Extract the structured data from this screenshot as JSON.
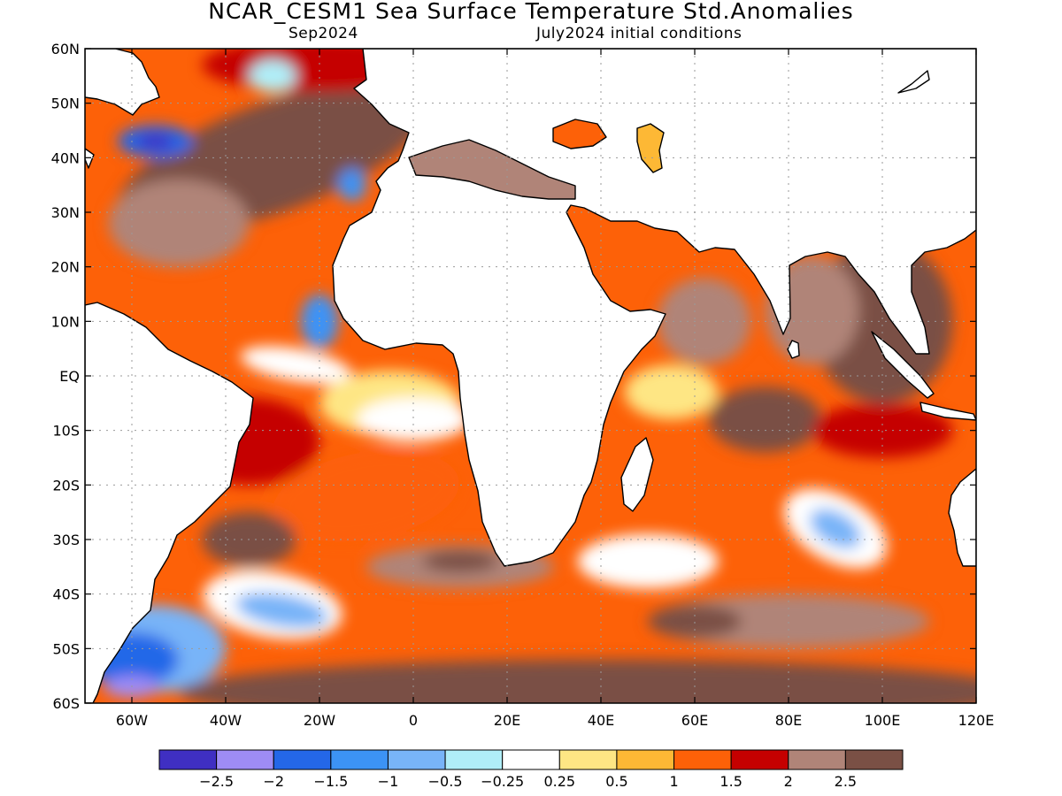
{
  "title": "NCAR_CESM1 Sea Surface Temperature Std.Anomalies",
  "subtitle_left": "Sep2024",
  "subtitle_right": "July2024 initial conditions",
  "map": {
    "lon_range": [
      -70,
      120
    ],
    "lat_range": [
      -60,
      60
    ],
    "lat_ticks": [
      {
        "value": 60,
        "label": "60N"
      },
      {
        "value": 50,
        "label": "50N"
      },
      {
        "value": 40,
        "label": "40N"
      },
      {
        "value": 30,
        "label": "30N"
      },
      {
        "value": 20,
        "label": "20N"
      },
      {
        "value": 10,
        "label": "10N"
      },
      {
        "value": 0,
        "label": "EQ"
      },
      {
        "value": -10,
        "label": "10S"
      },
      {
        "value": -20,
        "label": "20S"
      },
      {
        "value": -30,
        "label": "30S"
      },
      {
        "value": -40,
        "label": "40S"
      },
      {
        "value": -50,
        "label": "50S"
      },
      {
        "value": -60,
        "label": "60S"
      }
    ],
    "lon_ticks": [
      {
        "value": -60,
        "label": "60W"
      },
      {
        "value": -40,
        "label": "40W"
      },
      {
        "value": -20,
        "label": "20W"
      },
      {
        "value": 0,
        "label": "0"
      },
      {
        "value": 20,
        "label": "20E"
      },
      {
        "value": 40,
        "label": "40E"
      },
      {
        "value": 60,
        "label": "60E"
      },
      {
        "value": 80,
        "label": "80E"
      },
      {
        "value": 100,
        "label": "100E"
      },
      {
        "value": 120,
        "label": "120E"
      }
    ],
    "grid": true,
    "land_color": "#ffffff",
    "coastline_color": "#000000"
  },
  "colorbar": {
    "colors": [
      "#3f2fc2",
      "#9e8cf5",
      "#2467e8",
      "#3c93f5",
      "#78b4f8",
      "#b0eef8",
      "#ffffff",
      "#fee684",
      "#fdb835",
      "#fd6108",
      "#c50000",
      "#b08478",
      "#7a5045"
    ],
    "labels": [
      "−2.5",
      "−2",
      "−1.5",
      "−1",
      "−0.5",
      "−0.25",
      "0.25",
      "0.5",
      "1",
      "1.5",
      "2",
      "2.5"
    ]
  },
  "anomaly_blobs": [
    {
      "lon": -30,
      "lat": 40,
      "rx": 35,
      "ry": 10,
      "rot": -20,
      "level": 12
    },
    {
      "lon": -50,
      "lat": 28,
      "rx": 15,
      "ry": 8,
      "rot": 0,
      "level": 11
    },
    {
      "lon": -55,
      "lat": 43,
      "rx": 8,
      "ry": 3,
      "rot": 0,
      "level": 2
    },
    {
      "lon": -55,
      "lat": 43,
      "rx": 4,
      "ry": 1.5,
      "rot": 0,
      "level": 0
    },
    {
      "lon": -20,
      "lat": 10,
      "rx": 4,
      "ry": 5,
      "rot": 0,
      "level": 3
    },
    {
      "lon": -13,
      "lat": 35,
      "rx": 3,
      "ry": 3,
      "rot": 0,
      "level": 3
    },
    {
      "lon": -25,
      "lat": 2,
      "rx": 12,
      "ry": 3,
      "rot": 10,
      "level": 6
    },
    {
      "lon": -5,
      "lat": -5,
      "rx": 15,
      "ry": 6,
      "rot": 0,
      "level": 7
    },
    {
      "lon": 0,
      "lat": -8,
      "rx": 12,
      "ry": 4,
      "rot": 0,
      "level": 6
    },
    {
      "lon": -35,
      "lat": -12,
      "rx": 15,
      "ry": 8,
      "rot": 0,
      "level": 10
    },
    {
      "lon": -10,
      "lat": -22,
      "rx": 20,
      "ry": 8,
      "rot": -10,
      "level": 9
    },
    {
      "lon": -35,
      "lat": -30,
      "rx": 10,
      "ry": 5,
      "rot": 0,
      "level": 12
    },
    {
      "lon": -30,
      "lat": -42,
      "rx": 15,
      "ry": 6,
      "rot": 10,
      "level": 6
    },
    {
      "lon": -28,
      "lat": -43,
      "rx": 10,
      "ry": 3,
      "rot": 10,
      "level": 4
    },
    {
      "lon": -55,
      "lat": -50,
      "rx": 15,
      "ry": 8,
      "rot": 0,
      "level": 4
    },
    {
      "lon": -60,
      "lat": -52,
      "rx": 10,
      "ry": 5,
      "rot": 0,
      "level": 2
    },
    {
      "lon": -60,
      "lat": -57,
      "rx": 6,
      "ry": 2,
      "rot": 0,
      "level": 1
    },
    {
      "lon": 40,
      "lat": -58,
      "rx": 90,
      "ry": 6,
      "rot": 0,
      "level": 12
    },
    {
      "lon": 10,
      "lat": -35,
      "rx": 20,
      "ry": 4,
      "rot": 0,
      "level": 11
    },
    {
      "lon": 10,
      "lat": -34,
      "rx": 8,
      "ry": 2,
      "rot": 0,
      "level": 12
    },
    {
      "lon": 50,
      "lat": -34,
      "rx": 15,
      "ry": 5,
      "rot": 0,
      "level": 6
    },
    {
      "lon": 90,
      "lat": -28,
      "rx": 12,
      "ry": 6,
      "rot": 30,
      "level": 6
    },
    {
      "lon": 90,
      "lat": -28,
      "rx": 6,
      "ry": 3,
      "rot": 30,
      "level": 4
    },
    {
      "lon": 100,
      "lat": 10,
      "rx": 15,
      "ry": 15,
      "rot": 0,
      "level": 12
    },
    {
      "lon": 85,
      "lat": 12,
      "rx": 10,
      "ry": 10,
      "rot": 0,
      "level": 11
    },
    {
      "lon": 62,
      "lat": 10,
      "rx": 10,
      "ry": 8,
      "rot": 0,
      "level": 11
    },
    {
      "lon": 55,
      "lat": -3,
      "rx": 10,
      "ry": 5,
      "rot": 0,
      "level": 7
    },
    {
      "lon": 75,
      "lat": -8,
      "rx": 12,
      "ry": 6,
      "rot": 0,
      "level": 12
    },
    {
      "lon": 100,
      "lat": -10,
      "rx": 15,
      "ry": 5,
      "rot": 0,
      "level": 10
    },
    {
      "lon": 80,
      "lat": -45,
      "rx": 30,
      "ry": 5,
      "rot": 0,
      "level": 11
    },
    {
      "lon": 60,
      "lat": -45,
      "rx": 10,
      "ry": 3,
      "rot": 0,
      "level": 12
    },
    {
      "lon": -20,
      "lat": 57,
      "rx": 25,
      "ry": 5,
      "rot": 0,
      "level": 10
    },
    {
      "lon": -30,
      "lat": 55,
      "rx": 5,
      "ry": 3,
      "rot": 0,
      "level": 5
    }
  ]
}
